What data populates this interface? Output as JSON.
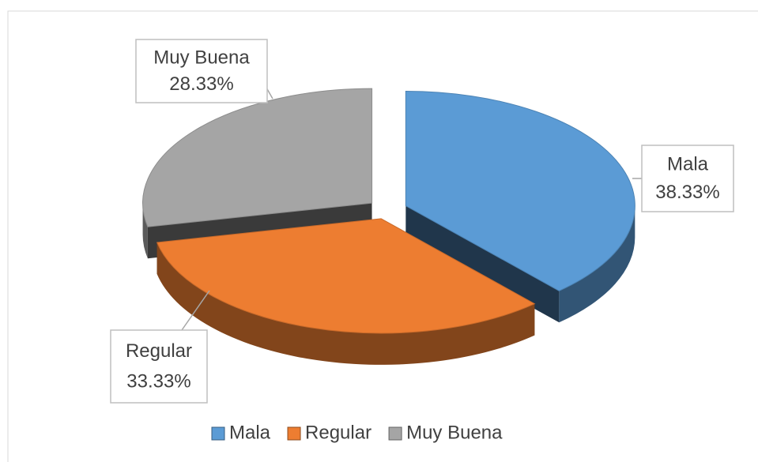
{
  "chart_data": {
    "type": "pie",
    "categories": [
      "Mala",
      "Regular",
      "Muy Buena"
    ],
    "values": [
      38.33,
      33.33,
      28.33
    ],
    "value_labels": [
      "38.33%",
      "33.33%",
      "28.33%"
    ],
    "colors": [
      "#5b9bd5",
      "#ed7d31",
      "#a5a5a5"
    ],
    "legend": "bottom"
  }
}
